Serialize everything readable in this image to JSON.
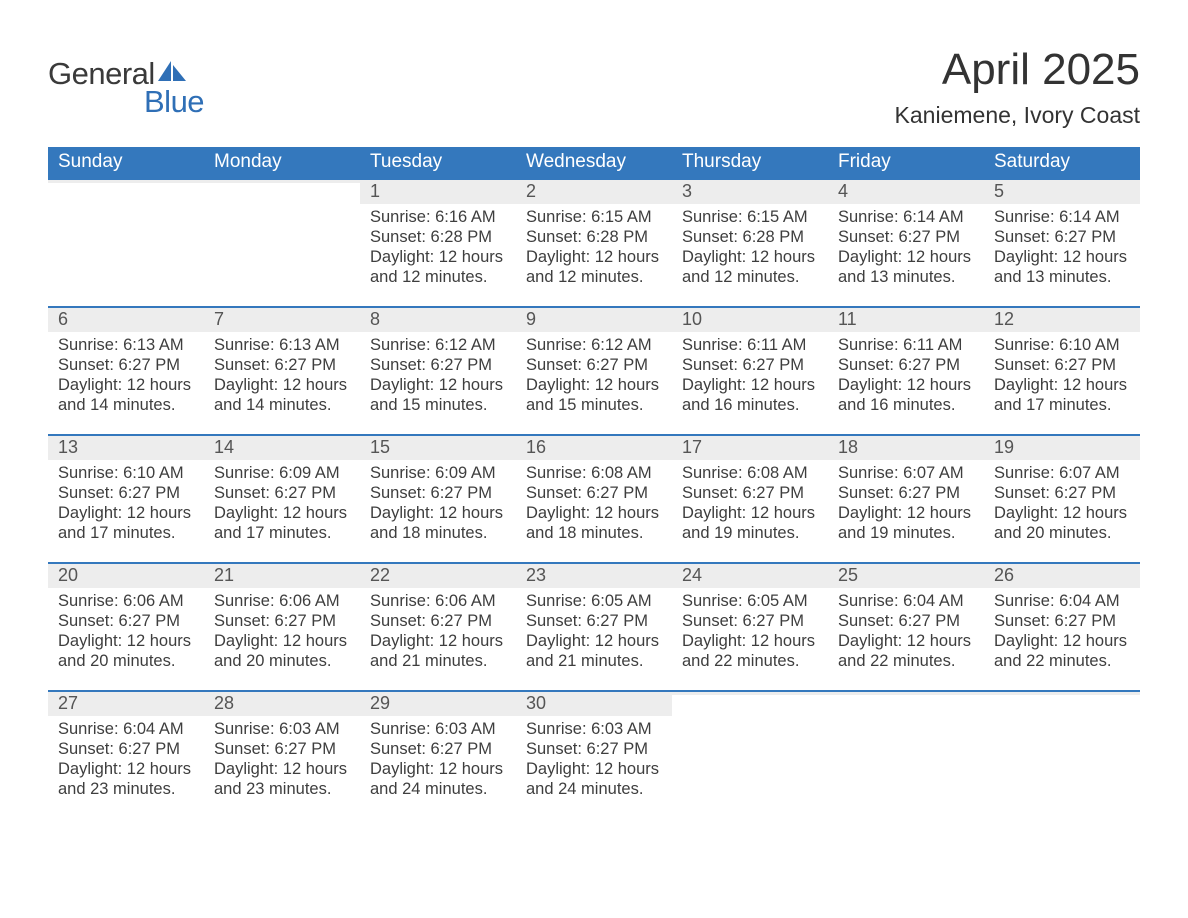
{
  "brand": {
    "word1": "General",
    "word2": "Blue",
    "word1_color": "#3a3a3a",
    "word2_color": "#2f6fb6",
    "sail_fill": "#2f6fb6",
    "font_size_pt": 31
  },
  "header": {
    "month_title": "April 2025",
    "location": "Kaniemene, Ivory Coast",
    "title_font_size_pt": 44,
    "location_font_size_pt": 23,
    "title_color": "#333333"
  },
  "calendar": {
    "type": "table",
    "columns": [
      "Sunday",
      "Monday",
      "Tuesday",
      "Wednesday",
      "Thursday",
      "Friday",
      "Saturday"
    ],
    "header_bg": "#3478bd",
    "header_fg": "#ffffff",
    "header_font_size_pt": 19,
    "daynum_bg": "#ededed",
    "daynum_color": "#555555",
    "daynum_border_color": "#3478bd",
    "daynum_font_size_pt": 18,
    "cell_font_size_pt": 16.5,
    "cell_text_color": "#3e3e3e",
    "background_color": "#ffffff",
    "weeks": [
      [
        null,
        null,
        {
          "d": "1",
          "sr": "6:16 AM",
          "ss": "6:28 PM",
          "dl": "12 hours and 12 minutes."
        },
        {
          "d": "2",
          "sr": "6:15 AM",
          "ss": "6:28 PM",
          "dl": "12 hours and 12 minutes."
        },
        {
          "d": "3",
          "sr": "6:15 AM",
          "ss": "6:28 PM",
          "dl": "12 hours and 12 minutes."
        },
        {
          "d": "4",
          "sr": "6:14 AM",
          "ss": "6:27 PM",
          "dl": "12 hours and 13 minutes."
        },
        {
          "d": "5",
          "sr": "6:14 AM",
          "ss": "6:27 PM",
          "dl": "12 hours and 13 minutes."
        }
      ],
      [
        {
          "d": "6",
          "sr": "6:13 AM",
          "ss": "6:27 PM",
          "dl": "12 hours and 14 minutes."
        },
        {
          "d": "7",
          "sr": "6:13 AM",
          "ss": "6:27 PM",
          "dl": "12 hours and 14 minutes."
        },
        {
          "d": "8",
          "sr": "6:12 AM",
          "ss": "6:27 PM",
          "dl": "12 hours and 15 minutes."
        },
        {
          "d": "9",
          "sr": "6:12 AM",
          "ss": "6:27 PM",
          "dl": "12 hours and 15 minutes."
        },
        {
          "d": "10",
          "sr": "6:11 AM",
          "ss": "6:27 PM",
          "dl": "12 hours and 16 minutes."
        },
        {
          "d": "11",
          "sr": "6:11 AM",
          "ss": "6:27 PM",
          "dl": "12 hours and 16 minutes."
        },
        {
          "d": "12",
          "sr": "6:10 AM",
          "ss": "6:27 PM",
          "dl": "12 hours and 17 minutes."
        }
      ],
      [
        {
          "d": "13",
          "sr": "6:10 AM",
          "ss": "6:27 PM",
          "dl": "12 hours and 17 minutes."
        },
        {
          "d": "14",
          "sr": "6:09 AM",
          "ss": "6:27 PM",
          "dl": "12 hours and 17 minutes."
        },
        {
          "d": "15",
          "sr": "6:09 AM",
          "ss": "6:27 PM",
          "dl": "12 hours and 18 minutes."
        },
        {
          "d": "16",
          "sr": "6:08 AM",
          "ss": "6:27 PM",
          "dl": "12 hours and 18 minutes."
        },
        {
          "d": "17",
          "sr": "6:08 AM",
          "ss": "6:27 PM",
          "dl": "12 hours and 19 minutes."
        },
        {
          "d": "18",
          "sr": "6:07 AM",
          "ss": "6:27 PM",
          "dl": "12 hours and 19 minutes."
        },
        {
          "d": "19",
          "sr": "6:07 AM",
          "ss": "6:27 PM",
          "dl": "12 hours and 20 minutes."
        }
      ],
      [
        {
          "d": "20",
          "sr": "6:06 AM",
          "ss": "6:27 PM",
          "dl": "12 hours and 20 minutes."
        },
        {
          "d": "21",
          "sr": "6:06 AM",
          "ss": "6:27 PM",
          "dl": "12 hours and 20 minutes."
        },
        {
          "d": "22",
          "sr": "6:06 AM",
          "ss": "6:27 PM",
          "dl": "12 hours and 21 minutes."
        },
        {
          "d": "23",
          "sr": "6:05 AM",
          "ss": "6:27 PM",
          "dl": "12 hours and 21 minutes."
        },
        {
          "d": "24",
          "sr": "6:05 AM",
          "ss": "6:27 PM",
          "dl": "12 hours and 22 minutes."
        },
        {
          "d": "25",
          "sr": "6:04 AM",
          "ss": "6:27 PM",
          "dl": "12 hours and 22 minutes."
        },
        {
          "d": "26",
          "sr": "6:04 AM",
          "ss": "6:27 PM",
          "dl": "12 hours and 22 minutes."
        }
      ],
      [
        {
          "d": "27",
          "sr": "6:04 AM",
          "ss": "6:27 PM",
          "dl": "12 hours and 23 minutes."
        },
        {
          "d": "28",
          "sr": "6:03 AM",
          "ss": "6:27 PM",
          "dl": "12 hours and 23 minutes."
        },
        {
          "d": "29",
          "sr": "6:03 AM",
          "ss": "6:27 PM",
          "dl": "12 hours and 24 minutes."
        },
        {
          "d": "30",
          "sr": "6:03 AM",
          "ss": "6:27 PM",
          "dl": "12 hours and 24 minutes."
        },
        null,
        null,
        null
      ]
    ],
    "labels": {
      "sunrise": "Sunrise:",
      "sunset": "Sunset:",
      "daylight": "Daylight:"
    }
  }
}
